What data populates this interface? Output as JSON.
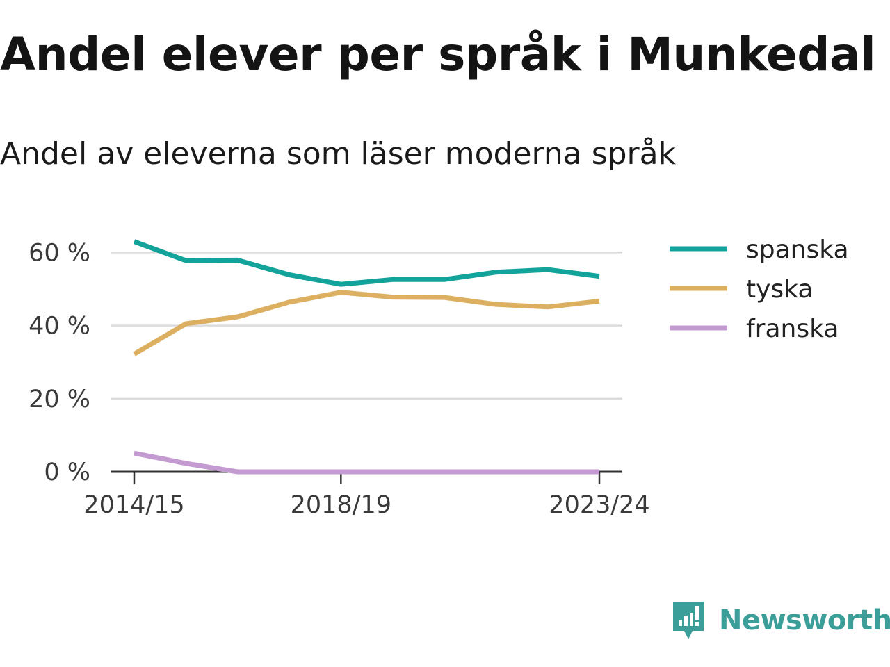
{
  "title": "Andel elever per språk i Munkedal",
  "subtitle": "Andel av eleverna som läser moderna språk",
  "brand": "Newsworthy",
  "colors": {
    "spanska": "#12a39a",
    "tyska": "#dcb060",
    "franska": "#c49bd1",
    "grid": "#dcdcdc",
    "axis": "#333333",
    "brand": "#3c9e98"
  },
  "chart_data": {
    "type": "line",
    "title": "Andel elever per språk i Munkedal",
    "subtitle": "Andel av eleverna som läser moderna språk",
    "x": [
      "2014/15",
      "2015/16",
      "2016/17",
      "2017/18",
      "2018/19",
      "2019/20",
      "2020/21",
      "2021/22",
      "2022/23",
      "2023/24"
    ],
    "x_tick_labels": [
      "2014/15",
      "2018/19",
      "2023/24"
    ],
    "y_ticks": [
      0,
      20,
      40,
      60
    ],
    "y_tick_labels": [
      "0 %",
      "20 %",
      "40 %",
      "60 %"
    ],
    "ylim": [
      0,
      63
    ],
    "grid": true,
    "legend_position": "right",
    "series": [
      {
        "name": "spanska",
        "color": "#12a39a",
        "values": [
          63.0,
          57.8,
          57.9,
          53.9,
          51.3,
          52.6,
          52.6,
          54.6,
          55.3,
          53.5
        ]
      },
      {
        "name": "tyska",
        "color": "#dcb060",
        "values": [
          32.2,
          40.5,
          42.4,
          46.4,
          49.1,
          47.8,
          47.7,
          45.8,
          45.1,
          46.7
        ]
      },
      {
        "name": "franska",
        "color": "#c49bd1",
        "values": [
          5.1,
          2.3,
          0,
          0,
          0,
          0,
          0,
          0,
          0,
          0
        ]
      }
    ]
  }
}
